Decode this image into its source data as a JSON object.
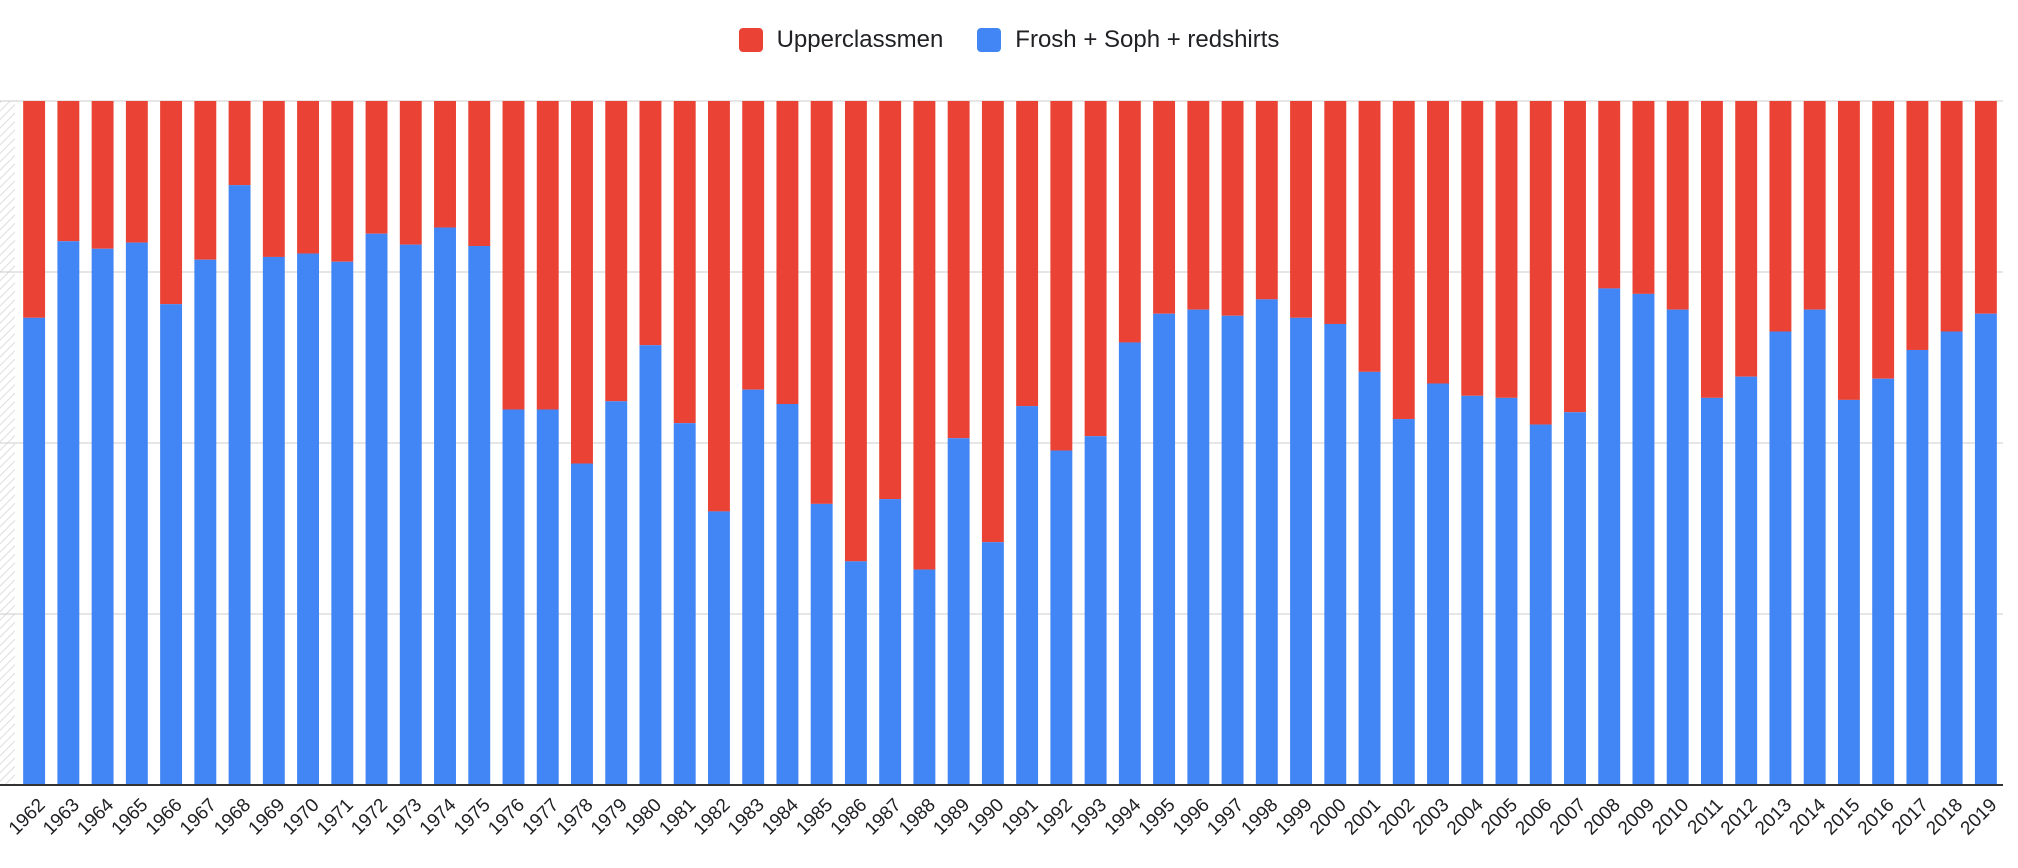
{
  "colors": {
    "upperclassmen": "#EA4335",
    "frosh": "#4285F4",
    "gridline": "#cccccc",
    "axis": "#333333",
    "text": "#202124"
  },
  "chart_data": {
    "type": "bar",
    "stacked": true,
    "normalized": true,
    "title": "",
    "xlabel": "",
    "ylabel": "",
    "ylim": [
      0,
      1
    ],
    "grid": true,
    "legend_position": "top",
    "legend": [
      "Upperclassmen",
      "Frosh + Soph + redshirts"
    ],
    "categories": [
      "1962",
      "1963",
      "1964",
      "1965",
      "1966",
      "1967",
      "1968",
      "1969",
      "1970",
      "1971",
      "1972",
      "1973",
      "1974",
      "1975",
      "1976",
      "1977",
      "1978",
      "1979",
      "1980",
      "1981",
      "1982",
      "1983",
      "1984",
      "1985",
      "1986",
      "1987",
      "1988",
      "1989",
      "1990",
      "1991",
      "1992",
      "1993",
      "1994",
      "1995",
      "1996",
      "1997",
      "1998",
      "1999",
      "2000",
      "2001",
      "2002",
      "2003",
      "2004",
      "2005",
      "2006",
      "2007",
      "2008",
      "2009",
      "2010",
      "2011",
      "2012",
      "2013",
      "2014",
      "2015",
      "2016",
      "2017",
      "2018",
      "2019"
    ],
    "series": [
      {
        "name": "Frosh + Soph + redshirts",
        "color": "#4285F4",
        "values": [
          0.683,
          0.795,
          0.784,
          0.793,
          0.703,
          0.768,
          0.877,
          0.772,
          0.777,
          0.765,
          0.806,
          0.79,
          0.815,
          0.788,
          0.549,
          0.549,
          0.47,
          0.561,
          0.643,
          0.529,
          0.4,
          0.578,
          0.557,
          0.411,
          0.327,
          0.418,
          0.315,
          0.507,
          0.355,
          0.554,
          0.489,
          0.51,
          0.647,
          0.689,
          0.695,
          0.686,
          0.71,
          0.683,
          0.674,
          0.604,
          0.535,
          0.587,
          0.569,
          0.566,
          0.527,
          0.545,
          0.726,
          0.718,
          0.695,
          0.566,
          0.597,
          0.663,
          0.695,
          0.563,
          0.594,
          0.636,
          0.663,
          0.689
        ]
      },
      {
        "name": "Upperclassmen",
        "color": "#EA4335",
        "values": [
          0.317,
          0.205,
          0.216,
          0.207,
          0.297,
          0.232,
          0.123,
          0.228,
          0.223,
          0.235,
          0.194,
          0.21,
          0.185,
          0.212,
          0.451,
          0.451,
          0.53,
          0.439,
          0.357,
          0.471,
          0.6,
          0.422,
          0.443,
          0.589,
          0.673,
          0.582,
          0.685,
          0.493,
          0.645,
          0.446,
          0.511,
          0.49,
          0.353,
          0.311,
          0.305,
          0.314,
          0.29,
          0.317,
          0.326,
          0.396,
          0.465,
          0.413,
          0.431,
          0.434,
          0.473,
          0.455,
          0.274,
          0.282,
          0.305,
          0.434,
          0.403,
          0.337,
          0.305,
          0.437,
          0.406,
          0.364,
          0.337,
          0.311
        ]
      }
    ]
  }
}
